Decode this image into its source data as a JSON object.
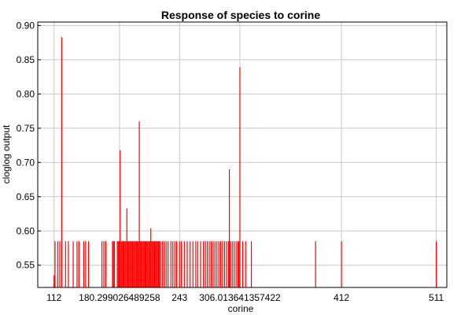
{
  "chart_data": {
    "type": "bar",
    "title": "Response of species to corine",
    "xlabel": "corine",
    "ylabel": "cloglog output",
    "xlim": [
      95,
      522
    ],
    "ylim": [
      0.5175,
      0.905
    ],
    "grid": true,
    "x_ticks": [
      {
        "value": 112,
        "label": "112"
      },
      {
        "value": 180.29902648925,
        "label": "180.299026489258"
      },
      {
        "value": 243,
        "label": "243"
      },
      {
        "value": 306.0136413574,
        "label": "306.013641357422"
      },
      {
        "value": 412,
        "label": "412"
      },
      {
        "value": 511,
        "label": "511"
      }
    ],
    "y_ticks": [
      0.55,
      0.6,
      0.65,
      0.7,
      0.75,
      0.8,
      0.85,
      0.9
    ],
    "series": [
      {
        "color": "#ff0000",
        "x": [
          112,
          113,
          116,
          118,
          120,
          124,
          127,
          132,
          136,
          138,
          143,
          145,
          148,
          162,
          164,
          166,
          173,
          174,
          175,
          178,
          179,
          180,
          181,
          182,
          183,
          184,
          185,
          186,
          187,
          188,
          189,
          190,
          191,
          192,
          193,
          194,
          195,
          196,
          197,
          198,
          199,
          200,
          201,
          202,
          203,
          204,
          205,
          206,
          207,
          208,
          209,
          210,
          211,
          212,
          213,
          214,
          215,
          216,
          217,
          218,
          219,
          220,
          221,
          222,
          223,
          225,
          227,
          229,
          231,
          234,
          236,
          238,
          240,
          243,
          245,
          248,
          251,
          254,
          257,
          260,
          262,
          265,
          268,
          270,
          272,
          274,
          276,
          278,
          280,
          282,
          284,
          286,
          288,
          290,
          292,
          294,
          295,
          296,
          298,
          300,
          302,
          304,
          305,
          306,
          309,
          312,
          318,
          385,
          412,
          511
        ],
        "values": [
          0.535,
          0.585,
          0.585,
          0.585,
          0.883,
          0.585,
          0.585,
          0.585,
          0.585,
          0.585,
          0.585,
          0.585,
          0.585,
          0.585,
          0.585,
          0.585,
          0.585,
          0.585,
          0.585,
          0.585,
          0.585,
          0.585,
          0.718,
          0.585,
          0.585,
          0.585,
          0.585,
          0.585,
          0.585,
          0.633,
          0.585,
          0.585,
          0.585,
          0.585,
          0.585,
          0.585,
          0.585,
          0.585,
          0.585,
          0.585,
          0.585,
          0.585,
          0.76,
          0.585,
          0.585,
          0.585,
          0.585,
          0.585,
          0.585,
          0.585,
          0.585,
          0.585,
          0.585,
          0.585,
          0.604,
          0.585,
          0.585,
          0.585,
          0.585,
          0.585,
          0.585,
          0.585,
          0.585,
          0.585,
          0.585,
          0.585,
          0.585,
          0.585,
          0.585,
          0.585,
          0.585,
          0.585,
          0.585,
          0.585,
          0.585,
          0.585,
          0.585,
          0.585,
          0.585,
          0.585,
          0.585,
          0.585,
          0.585,
          0.585,
          0.585,
          0.585,
          0.585,
          0.585,
          0.585,
          0.585,
          0.585,
          0.585,
          0.585,
          0.585,
          0.585,
          0.585,
          0.69,
          0.585,
          0.585,
          0.585,
          0.585,
          0.585,
          0.585,
          0.839,
          0.585,
          0.585,
          0.585,
          0.585,
          0.585,
          0.585
        ]
      }
    ]
  }
}
